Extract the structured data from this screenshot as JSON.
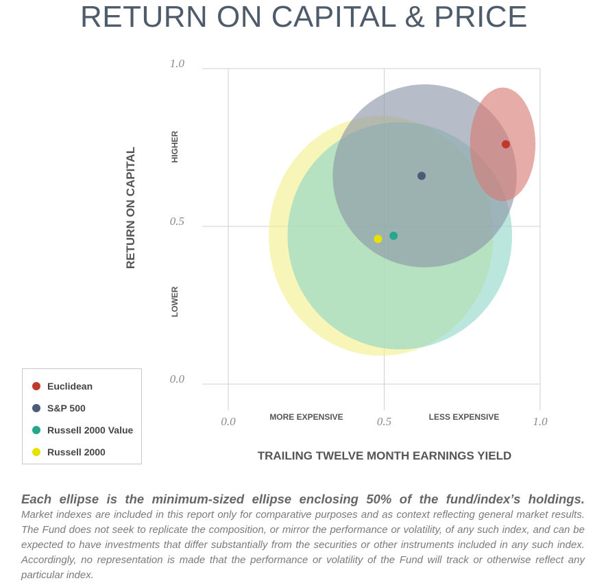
{
  "title": "RETURN ON CAPITAL & PRICE",
  "chart_data": {
    "type": "scatter",
    "xlabel": "TRAILING TWELVE MONTH EARNINGS YIELD",
    "ylabel": "RETURN ON CAPITAL",
    "xlim": [
      0.0,
      1.0
    ],
    "ylim": [
      0.0,
      1.0
    ],
    "x_ticks": [
      "0.0",
      "0.5",
      "1.0"
    ],
    "y_ticks": [
      "0.0",
      "0.5",
      "1.0"
    ],
    "grid": true,
    "x_regions": [
      "MORE EXPENSIVE",
      "LESS EXPENSIVE"
    ],
    "y_regions": [
      "HIGHER",
      "LOWER"
    ],
    "legend_position": "bottom-left",
    "series": [
      {
        "name": "Russell 2000",
        "color": "#e6e100",
        "ellipse_color": "#f2ef8c",
        "center": [
          0.48,
          0.46
        ],
        "ellipse": {
          "cx": 0.49,
          "cy": 0.47,
          "rx": 0.36,
          "ry": 0.38
        }
      },
      {
        "name": "Russell 2000 Value",
        "color": "#26a68c",
        "ellipse_color": "#8fd6c8",
        "center": [
          0.53,
          0.47
        ],
        "ellipse": {
          "cx": 0.55,
          "cy": 0.47,
          "rx": 0.36,
          "ry": 0.36
        }
      },
      {
        "name": "S&P 500",
        "color": "#4e5b78",
        "ellipse_color": "#8a94a6",
        "center": [
          0.62,
          0.66
        ],
        "ellipse": {
          "cx": 0.63,
          "cy": 0.66,
          "rx": 0.295,
          "ry": 0.29
        }
      },
      {
        "name": "Euclidean",
        "color": "#c0392b",
        "ellipse_color": "#d67a72",
        "center": [
          0.89,
          0.76
        ],
        "ellipse": {
          "cx": 0.88,
          "cy": 0.76,
          "rx": 0.105,
          "ry": 0.18
        }
      }
    ],
    "legend_order": [
      "Euclidean",
      "S&P 500",
      "Russell 2000 Value",
      "Russell 2000"
    ]
  },
  "note": {
    "headline": "Each ellipse is the minimum-sized ellipse enclosing 50% of the fund/index’s holdings.",
    "body": "Market indexes are included in this report only for comparative purposes and as context reflecting general market results. The Fund does not seek to replicate the composition, or mirror the performance or volatility, of any such index, and can be expected to have investments that differ substantially from the securities or other instruments included in any such index. Accordingly, no representation is made that the performance or volatility of the Fund will track or otherwise reflect any particular index."
  }
}
